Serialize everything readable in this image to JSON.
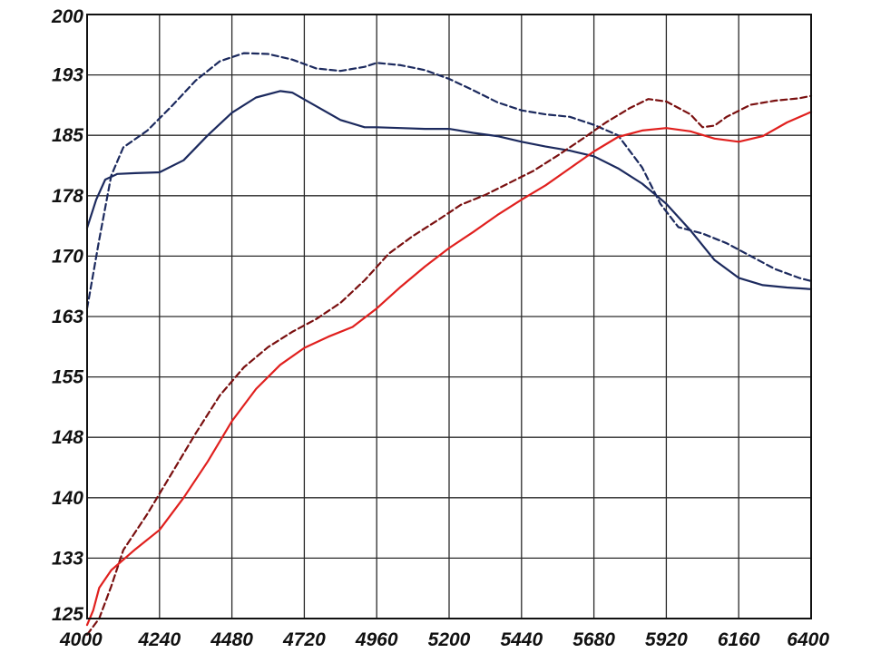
{
  "chart_data": {
    "type": "line",
    "title": "",
    "xlabel": "",
    "ylabel": "",
    "xlim": [
      4000,
      6400
    ],
    "ylim": [
      125,
      200
    ],
    "x_ticks": [
      "4000",
      "4240",
      "4480",
      "4720",
      "4960",
      "5200",
      "5440",
      "5680",
      "5920",
      "6160",
      "6400"
    ],
    "y_ticks": [
      "125",
      "133",
      "140",
      "148",
      "155",
      "163",
      "170",
      "178",
      "185",
      "193",
      "200"
    ],
    "grid": true,
    "legend": "none",
    "colors": {
      "navy": "#1c2a5e",
      "red": "#e0201e",
      "darkred": "#7a1010",
      "grid": "#2a2a2a"
    },
    "series": [
      {
        "color": "navy",
        "style": "dashed",
        "points": [
          [
            4000,
            163.5
          ],
          [
            4040,
            172
          ],
          [
            4080,
            180
          ],
          [
            4120,
            183.5
          ],
          [
            4200,
            185.6
          ],
          [
            4280,
            188.6
          ],
          [
            4360,
            191.8
          ],
          [
            4440,
            194.2
          ],
          [
            4520,
            195.2
          ],
          [
            4600,
            195.1
          ],
          [
            4680,
            194.4
          ],
          [
            4760,
            193.3
          ],
          [
            4840,
            193
          ],
          [
            4920,
            193.5
          ],
          [
            4960,
            194
          ],
          [
            5040,
            193.7
          ],
          [
            5120,
            193.1
          ],
          [
            5200,
            192
          ],
          [
            5280,
            190.6
          ],
          [
            5360,
            189.1
          ],
          [
            5440,
            188.1
          ],
          [
            5520,
            187.6
          ],
          [
            5600,
            187.3
          ],
          [
            5680,
            186.3
          ],
          [
            5760,
            185
          ],
          [
            5840,
            181
          ],
          [
            5900,
            176.5
          ],
          [
            5960,
            173.6
          ],
          [
            6040,
            172.8
          ],
          [
            6120,
            171.6
          ],
          [
            6200,
            170
          ],
          [
            6280,
            168.4
          ],
          [
            6360,
            167.3
          ],
          [
            6400,
            166.9
          ]
        ]
      },
      {
        "color": "navy",
        "style": "solid",
        "points": [
          [
            4000,
            173.5
          ],
          [
            4030,
            177
          ],
          [
            4060,
            179.5
          ],
          [
            4100,
            180.2
          ],
          [
            4160,
            180.3
          ],
          [
            4240,
            180.4
          ],
          [
            4320,
            181.9
          ],
          [
            4400,
            185
          ],
          [
            4480,
            187.8
          ],
          [
            4560,
            189.7
          ],
          [
            4640,
            190.5
          ],
          [
            4680,
            190.3
          ],
          [
            4760,
            188.6
          ],
          [
            4840,
            186.9
          ],
          [
            4920,
            186
          ],
          [
            4960,
            186
          ],
          [
            5040,
            185.9
          ],
          [
            5120,
            185.8
          ],
          [
            5200,
            185.8
          ],
          [
            5280,
            185.3
          ],
          [
            5360,
            184.9
          ],
          [
            5440,
            184.2
          ],
          [
            5520,
            183.6
          ],
          [
            5600,
            183.1
          ],
          [
            5680,
            182.4
          ],
          [
            5760,
            180.9
          ],
          [
            5840,
            179
          ],
          [
            5920,
            176.5
          ],
          [
            6000,
            173.2
          ],
          [
            6080,
            169.5
          ],
          [
            6160,
            167.3
          ],
          [
            6240,
            166.4
          ],
          [
            6320,
            166.1
          ],
          [
            6400,
            165.9
          ]
        ]
      },
      {
        "color": "darkred",
        "style": "dashed",
        "points": [
          [
            4000,
            123
          ],
          [
            4040,
            125
          ],
          [
            4080,
            129
          ],
          [
            4120,
            133.5
          ],
          [
            4200,
            138
          ],
          [
            4280,
            143
          ],
          [
            4360,
            148
          ],
          [
            4440,
            152.7
          ],
          [
            4520,
            156.2
          ],
          [
            4600,
            158.7
          ],
          [
            4680,
            160.6
          ],
          [
            4760,
            162.2
          ],
          [
            4840,
            164.2
          ],
          [
            4920,
            167
          ],
          [
            5000,
            170.3
          ],
          [
            5080,
            172.5
          ],
          [
            5160,
            174.4
          ],
          [
            5240,
            176.4
          ],
          [
            5320,
            177.6
          ],
          [
            5400,
            179.1
          ],
          [
            5480,
            180.6
          ],
          [
            5560,
            182.5
          ],
          [
            5640,
            184.5
          ],
          [
            5720,
            186.6
          ],
          [
            5800,
            188.4
          ],
          [
            5860,
            189.5
          ],
          [
            5920,
            189.2
          ],
          [
            6000,
            187.6
          ],
          [
            6040,
            186
          ],
          [
            6080,
            186.2
          ],
          [
            6120,
            187.3
          ],
          [
            6200,
            188.8
          ],
          [
            6280,
            189.3
          ],
          [
            6360,
            189.6
          ],
          [
            6400,
            189.9
          ]
        ]
      },
      {
        "color": "red",
        "style": "solid",
        "points": [
          [
            4000,
            124.2
          ],
          [
            4020,
            126
          ],
          [
            4040,
            128.8
          ],
          [
            4080,
            131
          ],
          [
            4160,
            133.6
          ],
          [
            4240,
            136
          ],
          [
            4320,
            140
          ],
          [
            4400,
            144.5
          ],
          [
            4480,
            149.5
          ],
          [
            4560,
            153.5
          ],
          [
            4640,
            156.5
          ],
          [
            4720,
            158.6
          ],
          [
            4800,
            160
          ],
          [
            4880,
            161.2
          ],
          [
            4960,
            163.5
          ],
          [
            5040,
            166.2
          ],
          [
            5120,
            168.7
          ],
          [
            5200,
            171
          ],
          [
            5280,
            173
          ],
          [
            5360,
            175.1
          ],
          [
            5440,
            177
          ],
          [
            5520,
            178.8
          ],
          [
            5600,
            180.9
          ],
          [
            5680,
            183
          ],
          [
            5760,
            184.8
          ],
          [
            5840,
            185.6
          ],
          [
            5920,
            185.9
          ],
          [
            6000,
            185.5
          ],
          [
            6080,
            184.6
          ],
          [
            6160,
            184.2
          ],
          [
            6240,
            184.9
          ],
          [
            6320,
            186.6
          ],
          [
            6400,
            187.9
          ]
        ]
      }
    ]
  }
}
